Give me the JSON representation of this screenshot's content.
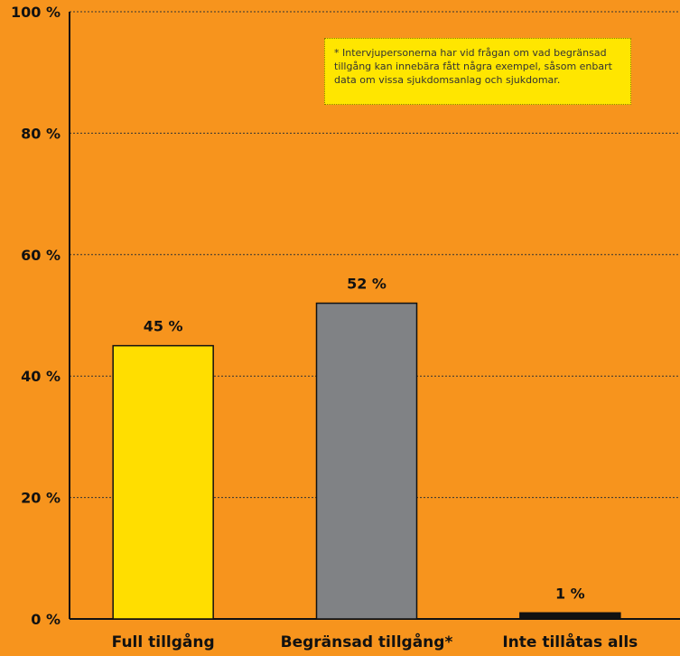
{
  "chart_data": {
    "type": "bar",
    "categories": [
      "Full tillgång",
      "Begränsad tillgång*",
      "Inte tillåtas alls"
    ],
    "values": [
      45,
      52,
      1
    ],
    "value_labels": [
      "45 %",
      "52 %",
      "1 %"
    ],
    "bar_colors": [
      "#ffde00",
      "#808285",
      "#111111"
    ],
    "ylim": [
      0,
      100
    ],
    "yticks": [
      0,
      20,
      40,
      60,
      80,
      100
    ],
    "ytick_labels": [
      "0 %",
      "20 %",
      "40 %",
      "60 %",
      "80 %",
      "100 %"
    ],
    "grid": true,
    "background_color": "#f7941d",
    "note_color": "#ffe600"
  },
  "note": "* Intervjupersonerna har vid frågan om vad begränsad tillgång kan innebära fått några exempel, såsom enbart data om vissa sjukdomsanlag och sjukdomar."
}
